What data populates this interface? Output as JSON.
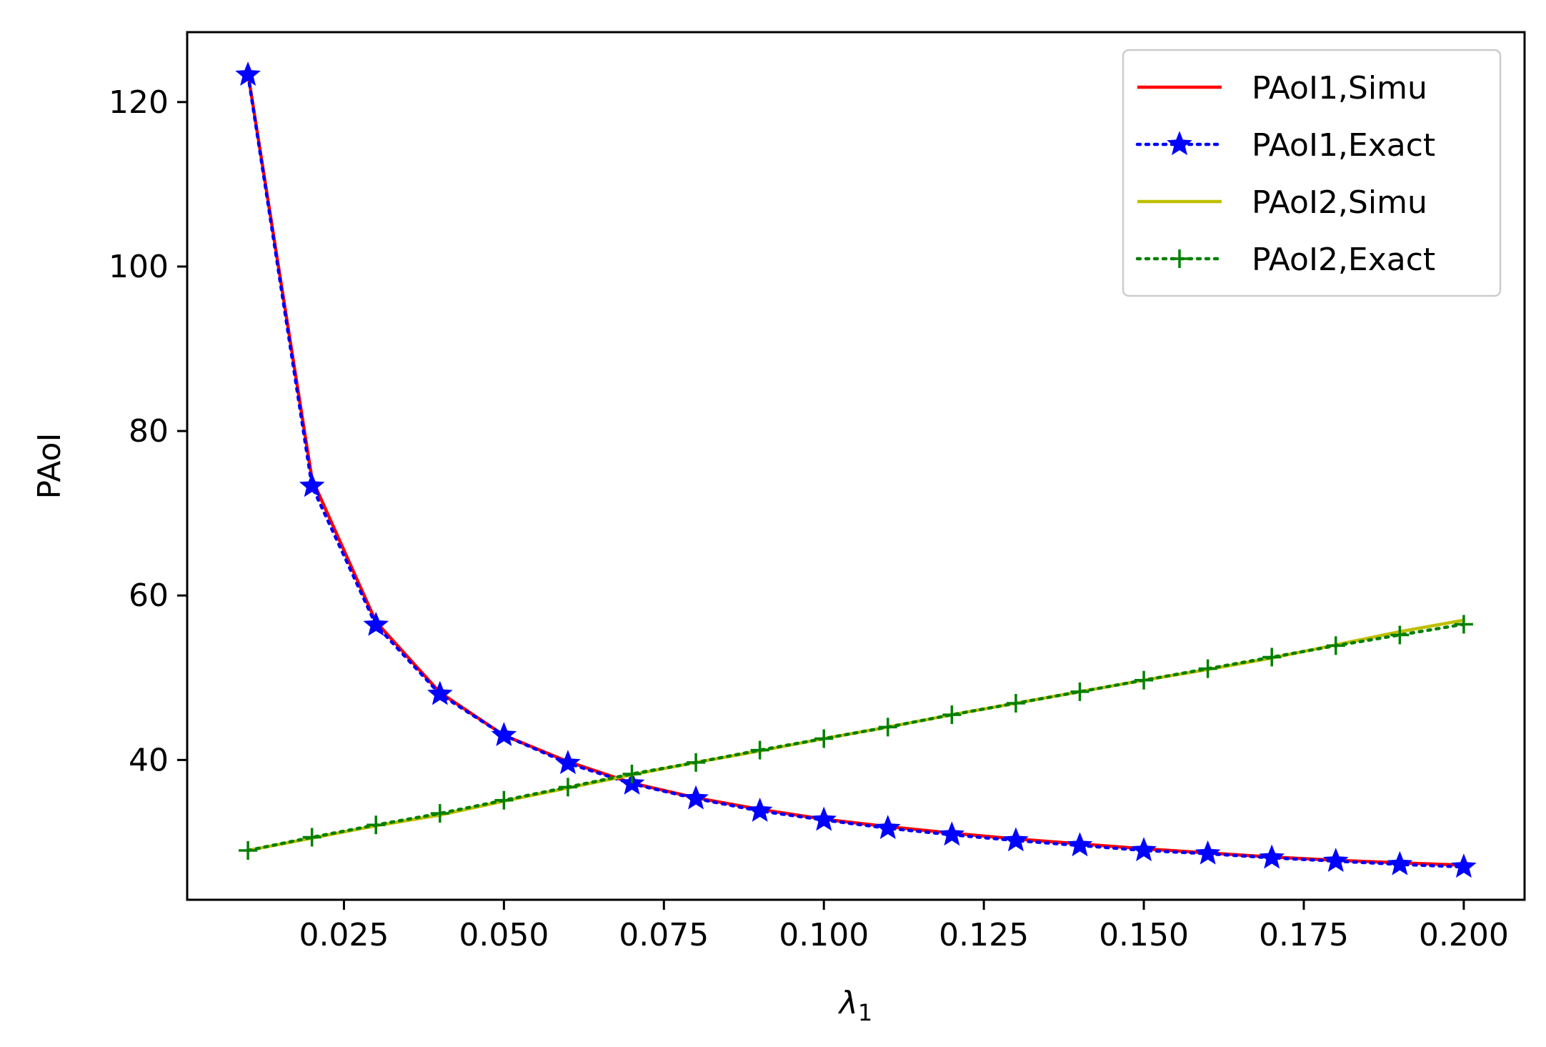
{
  "chart_data": {
    "type": "line",
    "title": "",
    "xlabel_main": "λ",
    "xlabel_sub": "1",
    "ylabel": "PAoI",
    "xlim": [
      0.0005,
      0.2095
    ],
    "ylim": [
      23,
      128.5
    ],
    "xticks": [
      0.025,
      0.05,
      0.075,
      0.1,
      0.125,
      0.15,
      0.175,
      0.2
    ],
    "xtick_labels": [
      "0.025",
      "0.050",
      "0.075",
      "0.100",
      "0.125",
      "0.150",
      "0.175",
      "0.200"
    ],
    "yticks": [
      40,
      60,
      80,
      100,
      120
    ],
    "ytick_labels": [
      "40",
      "60",
      "80",
      "100",
      "120"
    ],
    "grid": false,
    "legend_position": "top-right",
    "x": [
      0.01,
      0.02,
      0.03,
      0.04,
      0.05,
      0.06,
      0.07,
      0.08,
      0.09,
      0.1,
      0.11,
      0.12,
      0.13,
      0.14,
      0.15,
      0.16,
      0.17,
      0.18,
      0.19,
      0.2
    ],
    "series": [
      {
        "name": "PAoI1,Simu",
        "color": "#ff0000",
        "style": "solid",
        "marker": "none",
        "values": [
          123.5,
          74.2,
          56.8,
          48.2,
          43.0,
          39.8,
          37.2,
          35.4,
          34.0,
          32.8,
          31.9,
          31.1,
          30.4,
          29.8,
          29.2,
          28.7,
          28.2,
          27.8,
          27.5,
          27.2
        ]
      },
      {
        "name": "PAoI1,Exact",
        "color": "#0000ff",
        "style": "dotted",
        "marker": "star",
        "values": [
          123.3,
          73.3,
          56.4,
          48.0,
          43.0,
          39.6,
          37.1,
          35.3,
          33.8,
          32.7,
          31.7,
          30.9,
          30.2,
          29.6,
          29.0,
          28.6,
          28.1,
          27.7,
          27.3,
          27.0
        ]
      },
      {
        "name": "PAoI2,Simu",
        "color": "#bfbf00",
        "style": "solid",
        "marker": "none",
        "values": [
          29.0,
          30.5,
          32.0,
          33.3,
          35.0,
          36.6,
          38.2,
          39.7,
          41.1,
          42.6,
          44.0,
          45.5,
          46.9,
          48.3,
          49.7,
          51.0,
          52.4,
          54.0,
          55.6,
          57.0
        ]
      },
      {
        "name": "PAoI2,Exact",
        "color": "#008000",
        "style": "dotted",
        "marker": "plus",
        "values": [
          29.0,
          30.6,
          32.1,
          33.5,
          35.1,
          36.7,
          38.3,
          39.7,
          41.2,
          42.6,
          44.0,
          45.5,
          46.9,
          48.3,
          49.7,
          51.1,
          52.5,
          53.9,
          55.2,
          56.5
        ]
      }
    ]
  }
}
